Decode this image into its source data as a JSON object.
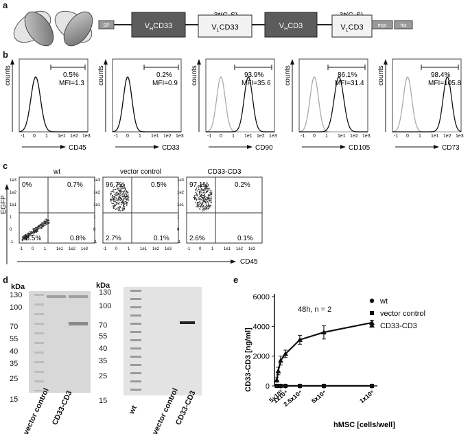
{
  "panels": {
    "a": "a",
    "b": "b",
    "c": "c",
    "d": "d",
    "e": "e"
  },
  "construct": {
    "sp": "SP",
    "linker": "3*(G4S)",
    "domains": [
      "VHCD33",
      "VLCD33",
      "VHCD3",
      "VLCD3"
    ],
    "myc": "myc",
    "his": "his"
  },
  "histograms": {
    "y_label": "counts",
    "tick_labels": [
      "-1",
      "0",
      "1",
      "1e1",
      "1e2",
      "1e3"
    ],
    "plots": [
      {
        "marker": "CD45",
        "pct": "0.5%",
        "mfi": "MFI=1.3"
      },
      {
        "marker": "CD33",
        "pct": "0.2%",
        "mfi": "MFI=0.9"
      },
      {
        "marker": "CD90",
        "pct": "93.9%",
        "mfi": "MFI=35.6"
      },
      {
        "marker": "CD105",
        "pct": "86.1%",
        "mfi": "MFI=31.4"
      },
      {
        "marker": "CD73",
        "pct": "98.4%",
        "mfi": "MFI=105.8"
      }
    ]
  },
  "dotplots": {
    "y_label": "EGFP",
    "x_label": "CD45",
    "y_ticks": [
      "1e3",
      "1e2",
      "1e1",
      "1",
      "0",
      "-1"
    ],
    "x_ticks": [
      "-1",
      "0",
      "1",
      "1e1",
      "1e2",
      "1e3"
    ],
    "plots": [
      {
        "title": "wt",
        "ul": "0%",
        "ur": "0.7%",
        "ll": "98.5%",
        "lr": "0.8%"
      },
      {
        "title": "vector control",
        "ul": "96.7%",
        "ur": "0.5%",
        "ll": "2.7%",
        "lr": "0.1%"
      },
      {
        "title": "CD33-CD3",
        "ul": "97.1%",
        "ur": "0.2%",
        "ll": "2.6%",
        "lr": "0.1%"
      }
    ]
  },
  "gels": {
    "unit": "kDa",
    "markers": [
      "130",
      "100",
      "70",
      "55",
      "40",
      "35",
      "25",
      "15"
    ],
    "gel1_lanes": [
      "vector control",
      "CD33-CD3"
    ],
    "gel2_lanes": [
      "wt",
      "vector control",
      "CD33-CD3"
    ]
  },
  "chart_data": {
    "type": "line",
    "annotation": "48h, n = 2",
    "xlabel": "hMSC [cells/well]",
    "ylabel": "CD33-CD3 [ng/ml]",
    "ylim": [
      0,
      6000
    ],
    "y_ticks": [
      0,
      2000,
      4000,
      6000
    ],
    "x_tick_labels": [
      "5x10³",
      "1x10⁴",
      "2.5x10⁴",
      "5x10⁴",
      "1x10⁵"
    ],
    "legend_position": "top-right",
    "series": [
      {
        "name": "wt",
        "marker": "circle",
        "x": [
          1000,
          5000,
          10000,
          25000,
          50000,
          100000
        ],
        "y": [
          0,
          0,
          0,
          0,
          0,
          0
        ]
      },
      {
        "name": "vector control",
        "marker": "square",
        "x": [
          1000,
          5000,
          10000,
          25000,
          50000,
          100000
        ],
        "y": [
          0,
          0,
          0,
          0,
          0,
          0
        ]
      },
      {
        "name": "CD33-CD3",
        "marker": "triangle",
        "x": [
          1000,
          2500,
          5000,
          10000,
          25000,
          50000,
          100000
        ],
        "y": [
          400,
          1000,
          1700,
          2150,
          3100,
          3600,
          4250
        ],
        "err": [
          150,
          250,
          300,
          250,
          300,
          450,
          150
        ]
      }
    ]
  }
}
